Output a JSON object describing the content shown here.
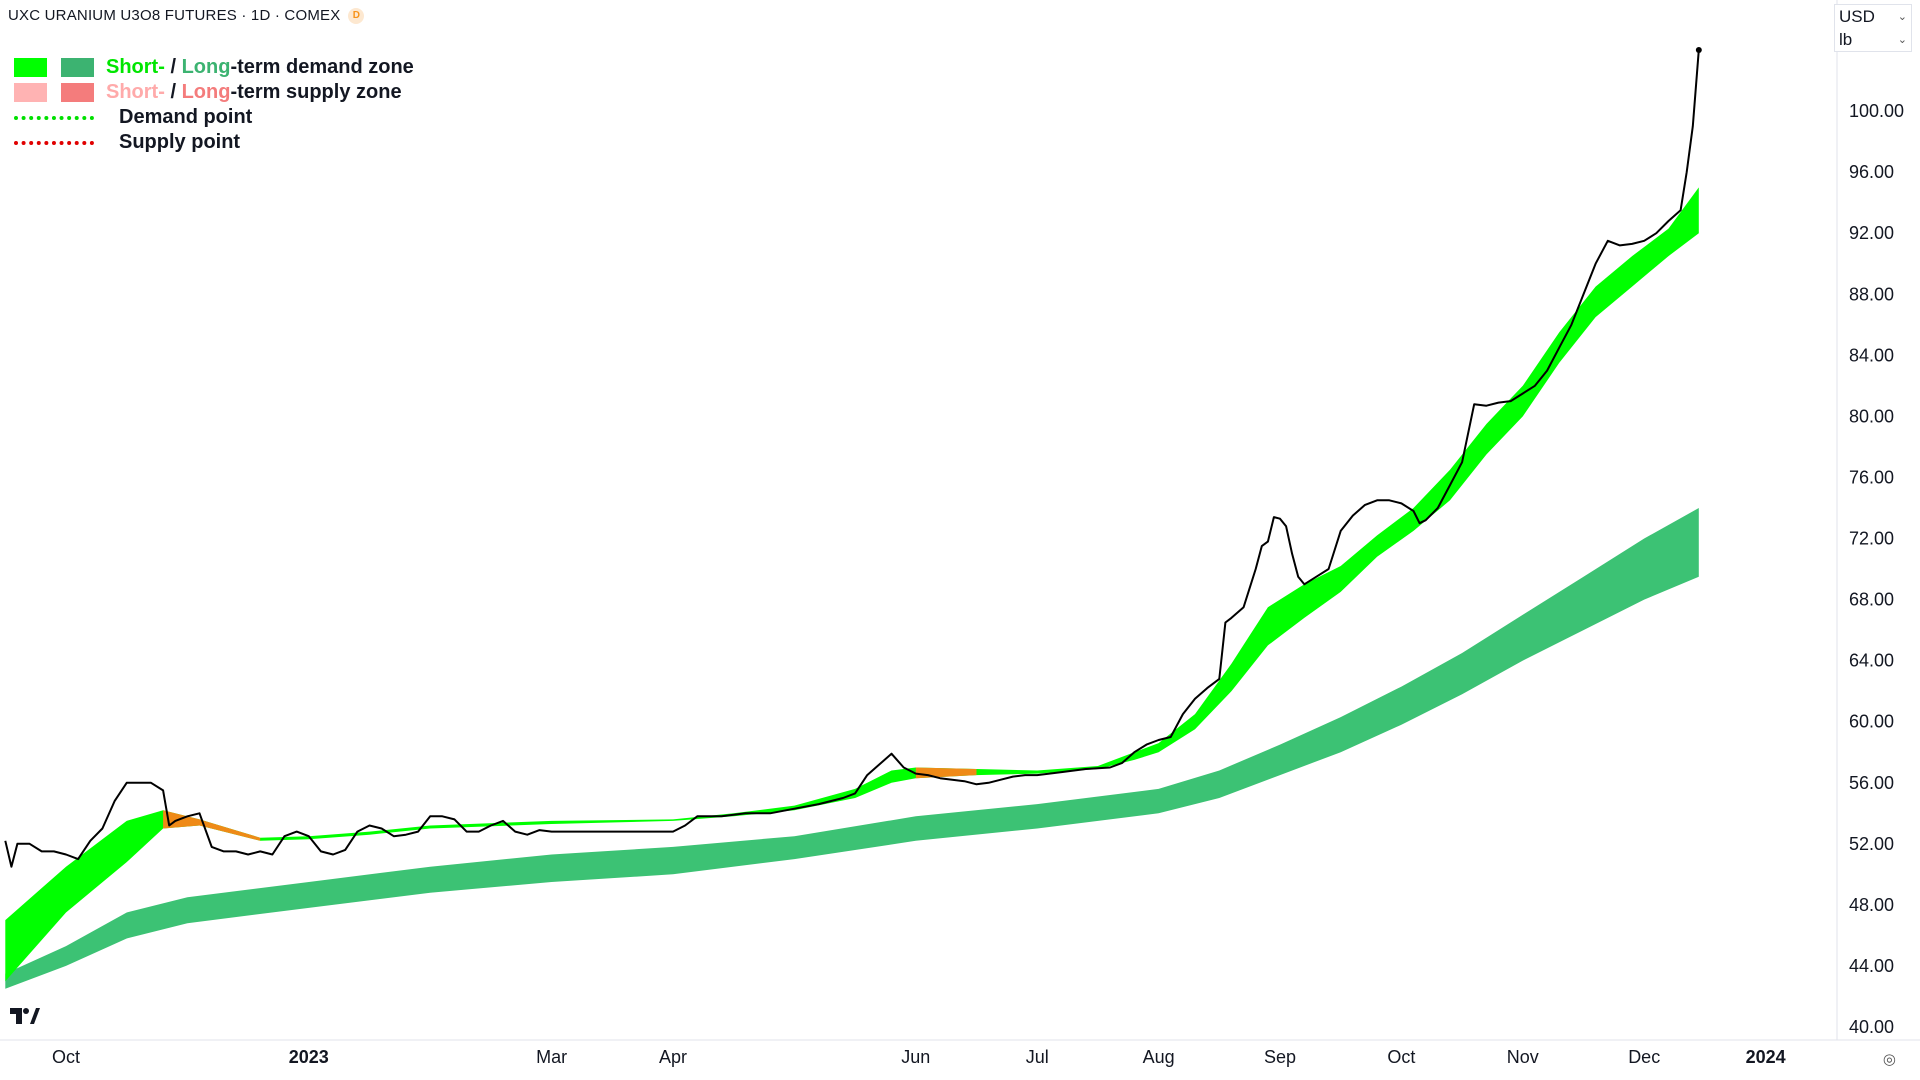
{
  "header": {
    "symbol_title": "UXC URANIUM U3O8 FUTURES · 1D · COMEX",
    "delay_badge": "D"
  },
  "legend": {
    "demand_zone": {
      "short": "Short-",
      "sep": " / ",
      "long": "Long",
      "rest": "-term demand zone"
    },
    "supply_zone": {
      "short": "Short-",
      "sep": " / ",
      "long": "Long",
      "rest": "-term supply zone"
    },
    "demand_point": "Demand point",
    "supply_point": "Supply point"
  },
  "currency_selector": {
    "currency": "USD",
    "unit": "lb"
  },
  "colors": {
    "price_line": "#000000",
    "short_demand": "#00ff00",
    "long_demand": "#3cc274",
    "short_supply": "#ffb3b3",
    "long_supply": "#f47c7c",
    "crossover": "#ef8a17",
    "demand_point": "#00e000",
    "supply_point": "#e00000",
    "long_label": "#3cb371",
    "supply_short_label": "#ffaaaa",
    "supply_long_label": "#f47c7c"
  },
  "chart_data": {
    "type": "line",
    "x_axis_labels": [
      {
        "label": "Oct",
        "t": 1.0,
        "bold": false
      },
      {
        "label": "2023",
        "t": 3.0,
        "bold": true
      },
      {
        "label": "Mar",
        "t": 5.0,
        "bold": false
      },
      {
        "label": "Apr",
        "t": 6.0,
        "bold": false
      },
      {
        "label": "Jun",
        "t": 8.0,
        "bold": false
      },
      {
        "label": "Jul",
        "t": 9.0,
        "bold": false
      },
      {
        "label": "Aug",
        "t": 10.0,
        "bold": false
      },
      {
        "label": "Sep",
        "t": 11.0,
        "bold": false
      },
      {
        "label": "Oct",
        "t": 12.0,
        "bold": false
      },
      {
        "label": "Nov",
        "t": 13.0,
        "bold": false
      },
      {
        "label": "Dec",
        "t": 14.0,
        "bold": false
      },
      {
        "label": "2024",
        "t": 15.0,
        "bold": true
      }
    ],
    "y_axis_labels": [
      "40.00",
      "44.00",
      "48.00",
      "52.00",
      "56.00",
      "60.00",
      "64.00",
      "68.00",
      "72.00",
      "76.00",
      "80.00",
      "84.00",
      "88.00",
      "92.00",
      "96.00",
      "100.00"
    ],
    "ylim": [
      40,
      104
    ],
    "xlim": [
      0.5,
      15.5
    ],
    "series": [
      {
        "name": "Price",
        "points": [
          [
            0.5,
            52.2
          ],
          [
            0.55,
            50.5
          ],
          [
            0.6,
            52.0
          ],
          [
            0.7,
            52.0
          ],
          [
            0.8,
            51.5
          ],
          [
            0.9,
            51.5
          ],
          [
            1.0,
            51.3
          ],
          [
            1.1,
            51.0
          ],
          [
            1.2,
            52.2
          ],
          [
            1.3,
            53.0
          ],
          [
            1.4,
            54.8
          ],
          [
            1.5,
            56.0
          ],
          [
            1.6,
            56.0
          ],
          [
            1.7,
            56.0
          ],
          [
            1.8,
            55.5
          ],
          [
            1.85,
            53.2
          ],
          [
            1.9,
            53.5
          ],
          [
            2.0,
            53.8
          ],
          [
            2.1,
            54.0
          ],
          [
            2.2,
            51.8
          ],
          [
            2.3,
            51.5
          ],
          [
            2.4,
            51.5
          ],
          [
            2.5,
            51.3
          ],
          [
            2.6,
            51.5
          ],
          [
            2.7,
            51.3
          ],
          [
            2.8,
            52.5
          ],
          [
            2.9,
            52.8
          ],
          [
            3.0,
            52.5
          ],
          [
            3.1,
            51.5
          ],
          [
            3.2,
            51.3
          ],
          [
            3.3,
            51.6
          ],
          [
            3.4,
            52.8
          ],
          [
            3.5,
            53.2
          ],
          [
            3.6,
            53.0
          ],
          [
            3.7,
            52.5
          ],
          [
            3.8,
            52.6
          ],
          [
            3.9,
            52.8
          ],
          [
            4.0,
            53.8
          ],
          [
            4.1,
            53.8
          ],
          [
            4.2,
            53.6
          ],
          [
            4.3,
            52.8
          ],
          [
            4.4,
            52.8
          ],
          [
            4.5,
            53.2
          ],
          [
            4.6,
            53.5
          ],
          [
            4.7,
            52.8
          ],
          [
            4.8,
            52.6
          ],
          [
            4.9,
            52.9
          ],
          [
            5.0,
            52.8
          ],
          [
            5.2,
            52.8
          ],
          [
            5.4,
            52.8
          ],
          [
            5.6,
            52.8
          ],
          [
            5.8,
            52.8
          ],
          [
            6.0,
            52.8
          ],
          [
            6.1,
            53.2
          ],
          [
            6.2,
            53.8
          ],
          [
            6.4,
            53.8
          ],
          [
            6.6,
            54.0
          ],
          [
            6.8,
            54.0
          ],
          [
            7.0,
            54.3
          ],
          [
            7.2,
            54.6
          ],
          [
            7.4,
            55.0
          ],
          [
            7.5,
            55.3
          ],
          [
            7.6,
            56.5
          ],
          [
            7.7,
            57.2
          ],
          [
            7.8,
            57.9
          ],
          [
            7.9,
            57.0
          ],
          [
            8.0,
            56.6
          ],
          [
            8.1,
            56.5
          ],
          [
            8.2,
            56.3
          ],
          [
            8.3,
            56.2
          ],
          [
            8.4,
            56.1
          ],
          [
            8.5,
            55.9
          ],
          [
            8.6,
            56.0
          ],
          [
            8.7,
            56.2
          ],
          [
            8.8,
            56.4
          ],
          [
            8.9,
            56.5
          ],
          [
            9.0,
            56.5
          ],
          [
            9.2,
            56.7
          ],
          [
            9.4,
            56.9
          ],
          [
            9.6,
            57.0
          ],
          [
            9.7,
            57.3
          ],
          [
            9.8,
            58.0
          ],
          [
            9.9,
            58.5
          ],
          [
            10.0,
            58.8
          ],
          [
            10.1,
            59.0
          ],
          [
            10.2,
            60.5
          ],
          [
            10.3,
            61.5
          ],
          [
            10.4,
            62.2
          ],
          [
            10.5,
            62.8
          ],
          [
            10.55,
            66.5
          ],
          [
            10.6,
            66.8
          ],
          [
            10.7,
            67.5
          ],
          [
            10.8,
            70.0
          ],
          [
            10.85,
            71.5
          ],
          [
            10.9,
            71.8
          ],
          [
            10.95,
            73.4
          ],
          [
            11.0,
            73.3
          ],
          [
            11.05,
            72.8
          ],
          [
            11.1,
            71.0
          ],
          [
            11.15,
            69.5
          ],
          [
            11.2,
            69.0
          ],
          [
            11.3,
            69.5
          ],
          [
            11.4,
            70.0
          ],
          [
            11.5,
            72.5
          ],
          [
            11.6,
            73.5
          ],
          [
            11.7,
            74.2
          ],
          [
            11.8,
            74.5
          ],
          [
            11.9,
            74.5
          ],
          [
            12.0,
            74.3
          ],
          [
            12.1,
            73.8
          ],
          [
            12.15,
            73.0
          ],
          [
            12.2,
            73.2
          ],
          [
            12.3,
            74.0
          ],
          [
            12.4,
            75.5
          ],
          [
            12.5,
            77.0
          ],
          [
            12.6,
            80.8
          ],
          [
            12.7,
            80.7
          ],
          [
            12.8,
            80.9
          ],
          [
            12.9,
            81.0
          ],
          [
            13.0,
            81.5
          ],
          [
            13.1,
            82.0
          ],
          [
            13.2,
            83.0
          ],
          [
            13.3,
            84.5
          ],
          [
            13.4,
            86.0
          ],
          [
            13.5,
            88.0
          ],
          [
            13.6,
            90.0
          ],
          [
            13.7,
            91.5
          ],
          [
            13.8,
            91.2
          ],
          [
            13.9,
            91.3
          ],
          [
            14.0,
            91.5
          ],
          [
            14.1,
            92.0
          ],
          [
            14.2,
            92.8
          ],
          [
            14.3,
            93.5
          ],
          [
            14.35,
            96.0
          ],
          [
            14.4,
            99.0
          ],
          [
            14.45,
            104.0
          ]
        ]
      },
      {
        "name": "Short-term demand zone",
        "upper": [
          [
            0.5,
            47.0
          ],
          [
            1.0,
            50.5
          ],
          [
            1.5,
            53.5
          ],
          [
            1.8,
            54.2
          ],
          [
            2.1,
            53.6
          ],
          [
            2.6,
            52.4
          ],
          [
            3.0,
            52.5
          ],
          [
            3.5,
            52.8
          ],
          [
            4.0,
            53.2
          ],
          [
            5.0,
            53.5
          ],
          [
            6.0,
            53.6
          ],
          [
            6.5,
            54.0
          ],
          [
            7.0,
            54.5
          ],
          [
            7.5,
            55.6
          ],
          [
            7.8,
            56.8
          ],
          [
            8.0,
            57.0
          ],
          [
            8.5,
            56.9
          ],
          [
            9.0,
            56.8
          ],
          [
            9.5,
            57.1
          ],
          [
            9.8,
            58.0
          ],
          [
            10.0,
            58.6
          ],
          [
            10.3,
            60.5
          ],
          [
            10.6,
            63.8
          ],
          [
            10.9,
            67.5
          ],
          [
            11.2,
            69.0
          ],
          [
            11.5,
            70.2
          ],
          [
            11.8,
            72.2
          ],
          [
            12.1,
            74.0
          ],
          [
            12.4,
            76.5
          ],
          [
            12.7,
            79.5
          ],
          [
            13.0,
            82.0
          ],
          [
            13.3,
            85.5
          ],
          [
            13.6,
            88.5
          ],
          [
            13.9,
            90.5
          ],
          [
            14.2,
            92.3
          ],
          [
            14.45,
            95.0
          ]
        ],
        "lower": [
          [
            0.5,
            43.0
          ],
          [
            1.0,
            47.5
          ],
          [
            1.5,
            50.8
          ],
          [
            1.8,
            53.0
          ],
          [
            2.1,
            53.2
          ],
          [
            2.6,
            52.2
          ],
          [
            3.0,
            52.3
          ],
          [
            3.5,
            52.6
          ],
          [
            4.0,
            53.0
          ],
          [
            5.0,
            53.3
          ],
          [
            6.0,
            53.5
          ],
          [
            6.5,
            53.8
          ],
          [
            7.0,
            54.2
          ],
          [
            7.5,
            55.0
          ],
          [
            7.8,
            56.0
          ],
          [
            8.0,
            56.3
          ],
          [
            8.5,
            56.5
          ],
          [
            9.0,
            56.6
          ],
          [
            9.5,
            56.9
          ],
          [
            9.8,
            57.5
          ],
          [
            10.0,
            58.0
          ],
          [
            10.3,
            59.5
          ],
          [
            10.6,
            62.0
          ],
          [
            10.9,
            65.0
          ],
          [
            11.2,
            66.8
          ],
          [
            11.5,
            68.5
          ],
          [
            11.8,
            70.8
          ],
          [
            12.1,
            72.5
          ],
          [
            12.4,
            74.5
          ],
          [
            12.7,
            77.5
          ],
          [
            13.0,
            80.0
          ],
          [
            13.3,
            83.5
          ],
          [
            13.6,
            86.5
          ],
          [
            13.9,
            88.5
          ],
          [
            14.2,
            90.5
          ],
          [
            14.45,
            92.0
          ]
        ]
      },
      {
        "name": "Long-term demand zone",
        "upper": [
          [
            0.5,
            43.5
          ],
          [
            1.0,
            45.3
          ],
          [
            1.5,
            47.5
          ],
          [
            2.0,
            48.5
          ],
          [
            3.0,
            49.5
          ],
          [
            4.0,
            50.5
          ],
          [
            5.0,
            51.3
          ],
          [
            6.0,
            51.8
          ],
          [
            7.0,
            52.5
          ],
          [
            8.0,
            53.8
          ],
          [
            9.0,
            54.6
          ],
          [
            10.0,
            55.6
          ],
          [
            10.5,
            56.8
          ],
          [
            11.0,
            58.5
          ],
          [
            11.5,
            60.3
          ],
          [
            12.0,
            62.3
          ],
          [
            12.5,
            64.5
          ],
          [
            13.0,
            67.0
          ],
          [
            13.5,
            69.5
          ],
          [
            14.0,
            72.0
          ],
          [
            14.45,
            74.0
          ]
        ],
        "lower": [
          [
            0.5,
            42.5
          ],
          [
            1.0,
            44.0
          ],
          [
            1.5,
            45.8
          ],
          [
            2.0,
            46.8
          ],
          [
            3.0,
            47.8
          ],
          [
            4.0,
            48.8
          ],
          [
            5.0,
            49.5
          ],
          [
            6.0,
            50.0
          ],
          [
            7.0,
            51.0
          ],
          [
            8.0,
            52.2
          ],
          [
            9.0,
            53.0
          ],
          [
            10.0,
            54.0
          ],
          [
            10.5,
            55.0
          ],
          [
            11.0,
            56.5
          ],
          [
            11.5,
            58.0
          ],
          [
            12.0,
            59.8
          ],
          [
            12.5,
            61.8
          ],
          [
            13.0,
            64.0
          ],
          [
            13.5,
            66.0
          ],
          [
            14.0,
            68.0
          ],
          [
            14.45,
            69.5
          ]
        ]
      }
    ]
  }
}
